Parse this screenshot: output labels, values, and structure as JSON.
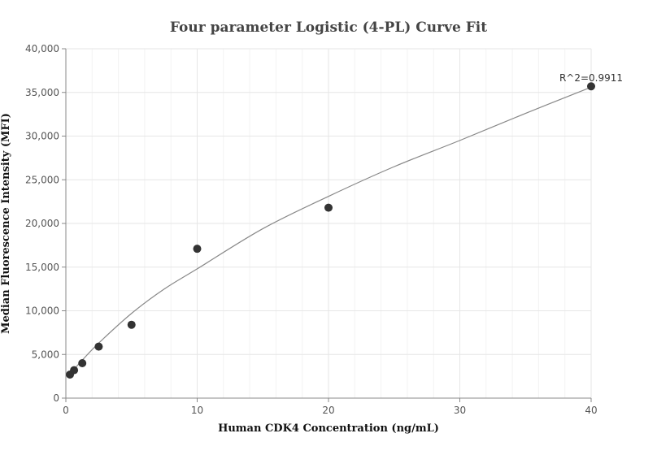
{
  "chart_data": {
    "type": "scatter",
    "title": "Four parameter Logistic (4-PL) Curve Fit",
    "xlabel": "Human CDK4 Concentration (ng/mL)",
    "ylabel": "Median Fluorescence Intensity (MFI)",
    "xlim": [
      0,
      40
    ],
    "ylim": [
      0,
      40000
    ],
    "x_ticks": [
      0,
      10,
      20,
      30,
      40
    ],
    "y_ticks": [
      0,
      5000,
      10000,
      15000,
      20000,
      25000,
      30000,
      35000,
      40000
    ],
    "x_tick_labels": [
      "0",
      "10",
      "20",
      "30",
      "40"
    ],
    "y_tick_labels": [
      "0",
      "5,000",
      "10,000",
      "15,000",
      "20,000",
      "25,000",
      "30,000",
      "35,000",
      "40,000"
    ],
    "grid": true,
    "series": [
      {
        "x": [
          0.3125,
          0.625,
          1.25,
          2.5,
          5,
          10,
          20,
          40
        ],
        "y": [
          2700,
          3200,
          4000,
          5900,
          8400,
          17100,
          21800,
          35700
        ]
      }
    ],
    "fit_curve": {
      "model": "4-PL",
      "x": [
        0.3125,
        0.625,
        1.25,
        2.5,
        5,
        7.5,
        10,
        15,
        20,
        25,
        30,
        35,
        40
      ],
      "y": [
        2750,
        3300,
        4350,
        6300,
        9700,
        12500,
        14800,
        19400,
        23100,
        26500,
        29500,
        32600,
        35600
      ]
    },
    "annotation": "R^2=0.9911",
    "colors": {
      "point": "#333333",
      "curve": "#888888",
      "grid_major": "#e6e6e6",
      "grid_minor": "#f3f3f3",
      "axis": "#888888",
      "title": "#444444"
    }
  }
}
